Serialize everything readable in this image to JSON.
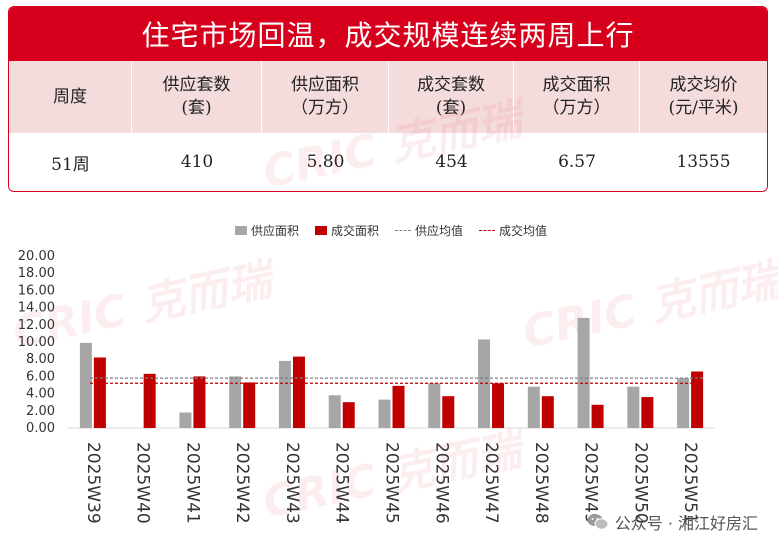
{
  "header": {
    "title": "住宅市场回温，成交规模连续两周上行",
    "columns": [
      "周度",
      "供应套数\n(套)",
      "供应面积\n（万方）",
      "成交套数\n(套)",
      "成交面积\n（万方）",
      "成交均价\n(元/平米)"
    ],
    "values": [
      "51周",
      "410",
      "5.80",
      "454",
      "6.57",
      "13555"
    ]
  },
  "watermarks": [
    "CRIC 克而瑞",
    "CRIC 克而瑞",
    "CRIC 克而瑞",
    "CRIC 克而瑞"
  ],
  "footer": {
    "text": "公众号 · 湘江好房汇"
  },
  "colors": {
    "brand_red": "#d6001c",
    "supply": "#a6a6a6",
    "deal": "#c00000"
  },
  "chart_data": {
    "type": "bar",
    "categories": [
      "2025W39",
      "2025W40",
      "2025W41",
      "2025W42",
      "2025W43",
      "2025W44",
      "2025W45",
      "2025W46",
      "2025W47",
      "2025W48",
      "2025W49",
      "2025W50",
      "2025W51"
    ],
    "series": [
      {
        "name": "供应面积",
        "values": [
          9.9,
          0,
          1.8,
          6.0,
          7.8,
          3.8,
          3.3,
          5.2,
          10.3,
          4.8,
          12.8,
          4.8,
          5.8
        ]
      },
      {
        "name": "成交面积",
        "values": [
          8.2,
          6.3,
          6.0,
          5.3,
          8.3,
          3.0,
          4.9,
          3.7,
          5.2,
          3.7,
          2.7,
          3.6,
          6.57
        ]
      }
    ],
    "reference_lines": [
      {
        "name": "供应均值",
        "value": 5.8
      },
      {
        "name": "成交均值",
        "value": 5.2
      }
    ],
    "yticks": [
      "0.00",
      "2.00",
      "4.00",
      "6.00",
      "8.00",
      "10.00",
      "12.00",
      "14.00",
      "16.00",
      "18.00",
      "20.00"
    ],
    "ylim": [
      0,
      20
    ],
    "legend_position": "top",
    "grid": false
  }
}
